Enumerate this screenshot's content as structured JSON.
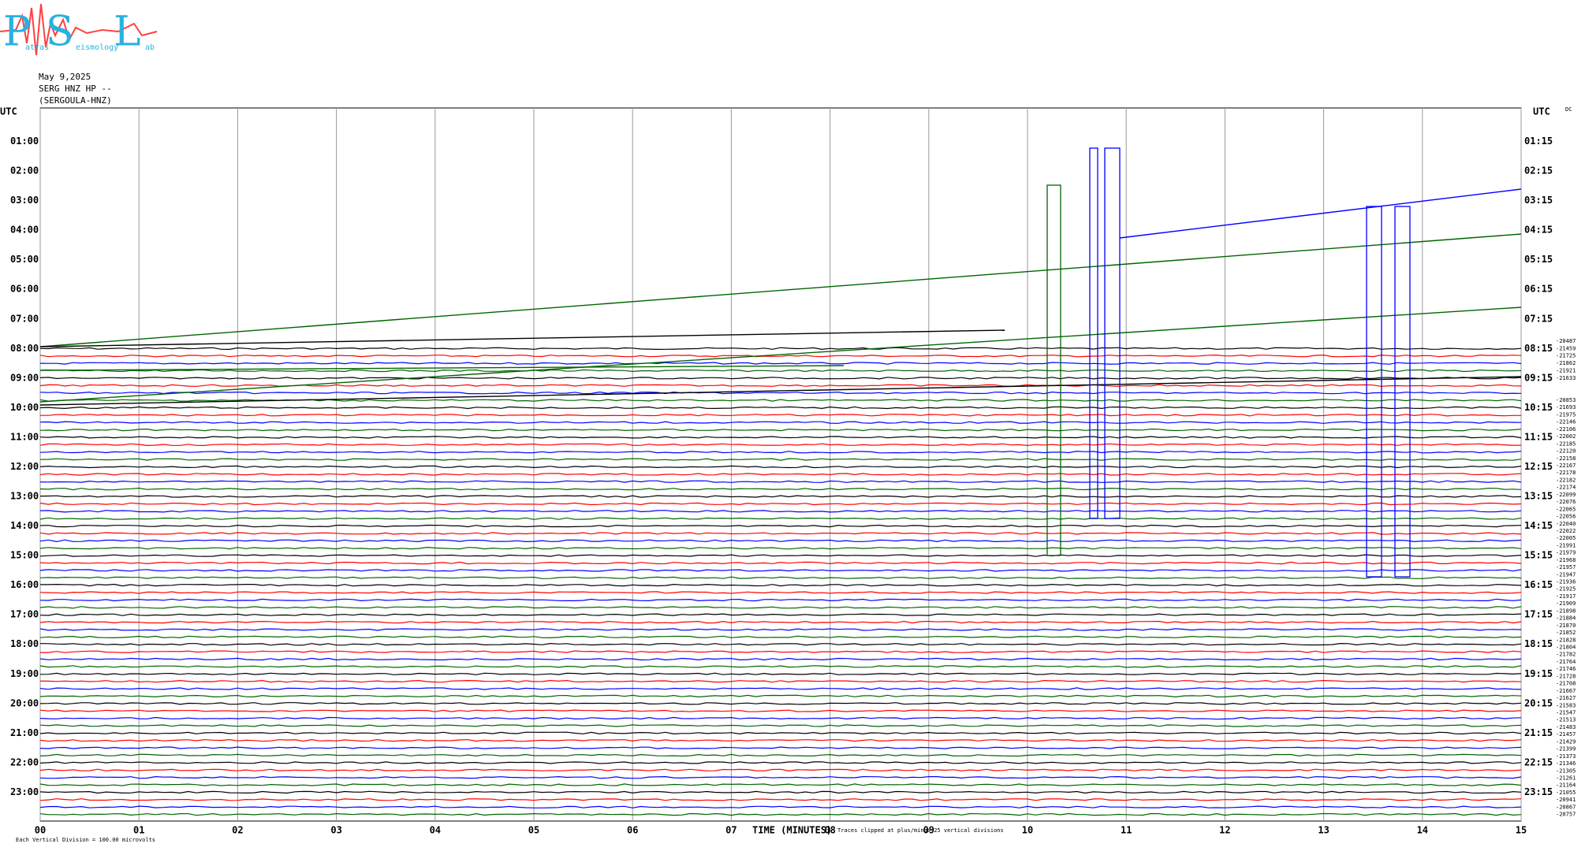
{
  "header": {
    "logo": {
      "letters": [
        "P",
        "S",
        "L"
      ],
      "words": [
        "atras",
        "eismology",
        "ab"
      ]
    },
    "lines": [
      "May 9,2025",
      "SERG HNZ HP --",
      "(SERGOULA-HNZ)"
    ]
  },
  "chart_data": {
    "type": "helicorder",
    "left_axis_title": "UTC",
    "right_axis_title": "UTC",
    "corner_label": "DC",
    "x_label": "TIME (MINUTES)",
    "xlim": [
      0,
      15
    ],
    "xticks": [
      {
        "value": 0,
        "label": "00"
      },
      {
        "value": 1,
        "label": "01"
      },
      {
        "value": 2,
        "label": "02"
      },
      {
        "value": 3,
        "label": "03"
      },
      {
        "value": 4,
        "label": "04"
      },
      {
        "value": 5,
        "label": "05"
      },
      {
        "value": 6,
        "label": "06"
      },
      {
        "value": 7,
        "label": "07"
      },
      {
        "value": 8,
        "label": "08"
      },
      {
        "value": 9,
        "label": "09"
      },
      {
        "value": 10,
        "label": "10"
      },
      {
        "value": 11,
        "label": "11"
      },
      {
        "value": 12,
        "label": "12"
      },
      {
        "value": 13,
        "label": "13"
      },
      {
        "value": 14,
        "label": "14"
      },
      {
        "value": 15,
        "label": "15"
      }
    ],
    "grid": true,
    "trace_colors": [
      "#000000",
      "#ff0000",
      "#0000ff",
      "#006400"
    ],
    "left_labels": [
      "01:00",
      "02:00",
      "03:00",
      "04:00",
      "05:00",
      "06:00",
      "07:00",
      "08:00",
      "09:00",
      "10:00",
      "11:00",
      "12:00",
      "13:00",
      "14:00",
      "15:00",
      "16:00",
      "17:00",
      "18:00",
      "19:00",
      "20:00",
      "21:00",
      "22:00",
      "23:00"
    ],
    "right_labels": [
      "01:15",
      "02:15",
      "03:15",
      "04:15",
      "05:15",
      "06:15",
      "07:15",
      "08:15",
      "09:15",
      "10:15",
      "11:15",
      "12:15",
      "13:15",
      "14:15",
      "15:15",
      "16:15",
      "17:15",
      "18:15",
      "19:15",
      "20:15",
      "21:15",
      "22:15",
      "23:15"
    ],
    "trace_counts_a": [
      -20487,
      -21459,
      -21725,
      -21862,
      -21921,
      -21633
    ],
    "trace_counts_b": [
      -20853,
      -21693,
      -21975,
      -22146,
      -22106,
      -22002,
      -22185,
      -22120,
      -22158,
      -22167,
      -22178,
      -22182,
      -22174,
      -22099,
      -22076,
      -22065,
      -22056,
      -22040,
      -22022,
      -22005,
      -21991,
      -21979,
      -21968,
      -21957,
      -21947,
      -21936,
      -21925,
      -21917,
      -21909,
      -21898,
      -21884,
      -21870,
      -21852,
      -21828,
      -21804,
      -21782,
      -21764,
      -21746,
      -21728,
      -21708,
      -21667,
      -21627,
      -21583,
      -21547,
      -21513,
      -21483,
      -21457,
      -21429,
      -21399,
      -21373,
      -21346,
      -21305,
      -21261,
      -21164,
      -21055,
      -20941,
      -20867,
      -20757
    ],
    "footer_left": "Each Vertical Division =  100.00 microvolts",
    "footer_right": "Traces clipped at plus/minus 25 vertical divisions"
  }
}
